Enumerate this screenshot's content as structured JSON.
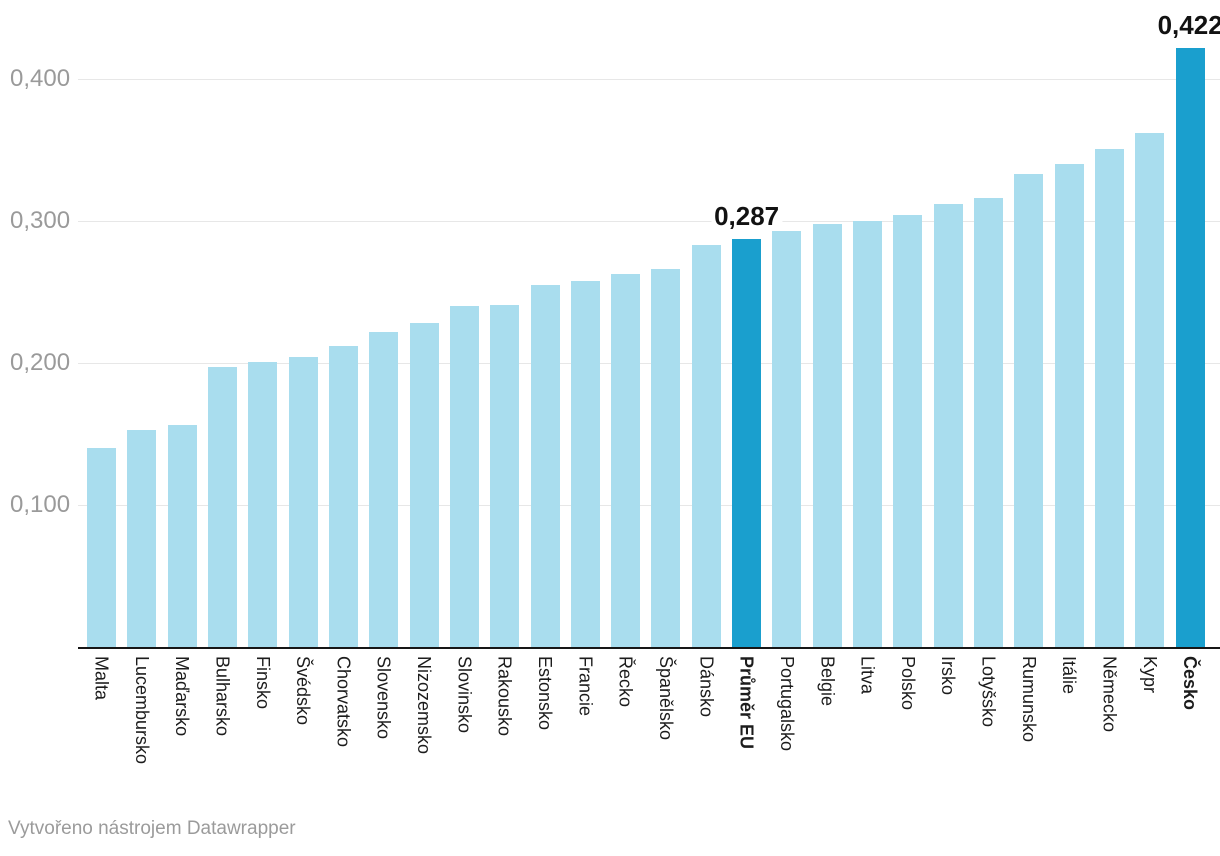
{
  "chart_data": {
    "type": "bar",
    "title": "",
    "xlabel": "",
    "ylabel": "",
    "categories": [
      "Malta",
      "Lucembursko",
      "Maďarsko",
      "Bulharsko",
      "Finsko",
      "Švédsko",
      "Chorvatsko",
      "Slovensko",
      "Nizozemsko",
      "Slovinsko",
      "Rakousko",
      "Estonsko",
      "Francie",
      "Řecko",
      "Španělsko",
      "Dánsko",
      "Průměr EU",
      "Portugalsko",
      "Belgie",
      "Litva",
      "Polsko",
      "Irsko",
      "Lotyšsko",
      "Rumunsko",
      "Itálie",
      "Německo",
      "Kypr",
      "Česko"
    ],
    "values": [
      0.14,
      0.153,
      0.156,
      0.197,
      0.201,
      0.204,
      0.212,
      0.222,
      0.228,
      0.24,
      0.241,
      0.255,
      0.258,
      0.263,
      0.266,
      0.283,
      0.287,
      0.293,
      0.298,
      0.3,
      0.304,
      0.312,
      0.316,
      0.333,
      0.34,
      0.351,
      0.362,
      0.422
    ],
    "highlight_indices": [
      16,
      27
    ],
    "bar_value_labels": {
      "16": "0,287",
      "27": "0,422"
    },
    "ylim": [
      0,
      0.44
    ],
    "yticks": {
      "values": [
        0.1,
        0.2,
        0.3,
        0.4
      ],
      "labels": [
        "0,100",
        "0,200",
        "0,300",
        "0,400"
      ]
    },
    "grid": "horizontal",
    "legend": "none",
    "colors": {
      "bar": "#a9ddee",
      "highlight": "#1a9fce",
      "gridline": "#e7e7e7",
      "axis_line": "#161616",
      "tick_label": "#9a9a9a",
      "category_label": "#1c1c1c",
      "value_label": "#121212"
    },
    "decimal_separator": ","
  },
  "footer": {
    "attribution": "Vytvořeno nástrojem Datawrapper"
  }
}
